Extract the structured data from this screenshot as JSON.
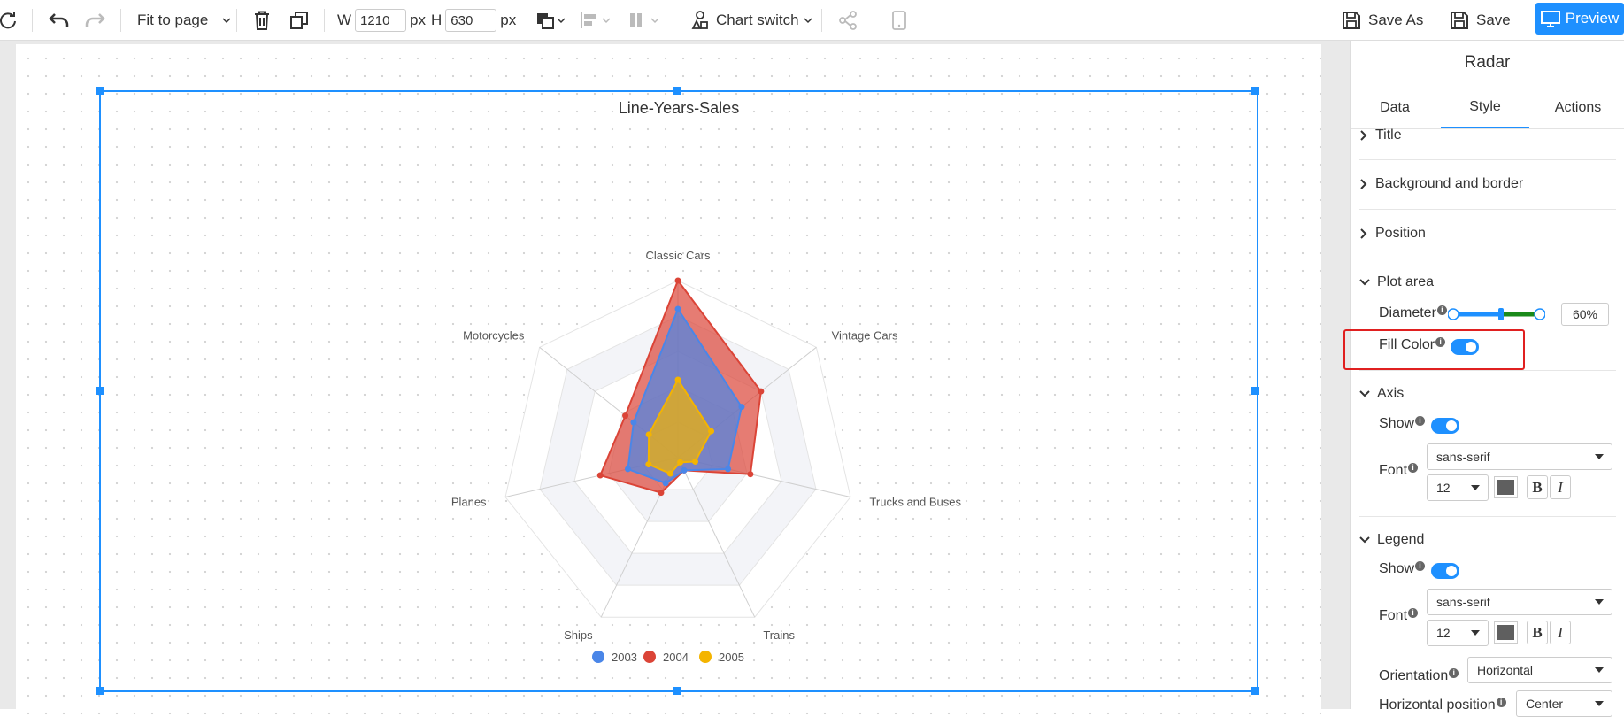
{
  "toolbar": {
    "fit_label": "Fit to page",
    "width_label": "W",
    "width_value": "1210",
    "width_unit": "px",
    "height_label": "H",
    "height_value": "630",
    "height_unit": "px",
    "chart_switch_label": "Chart switch",
    "save_as_label": "Save As",
    "save_label": "Save",
    "preview_label": "Preview"
  },
  "panel": {
    "title": "Radar",
    "tabs": [
      "Data",
      "Style",
      "Actions"
    ],
    "active_tab": "Style",
    "sections": {
      "title": "Title",
      "background": "Background and border",
      "position": "Position",
      "plot_area": "Plot area",
      "axis": "Axis",
      "legend": "Legend"
    },
    "plot_area": {
      "diameter_label": "Diameter",
      "diameter_value": "60%",
      "diameter_fraction": 0.6,
      "fill_color_label": "Fill Color",
      "fill_color_on": true
    },
    "axis": {
      "show_label": "Show",
      "show_on": true,
      "font_label": "Font",
      "font_family": "sans-serif",
      "font_size": "12",
      "bold": "B",
      "italic": "I"
    },
    "legend": {
      "show_label": "Show",
      "show_on": true,
      "font_label": "Font",
      "font_family": "sans-serif",
      "font_size": "12",
      "bold": "B",
      "italic": "I",
      "orientation_label": "Orientation",
      "orientation_value": "Horizontal",
      "hpos_label": "Horizontal position",
      "hpos_value": "Center"
    }
  },
  "chart_data": {
    "type": "radar",
    "title": "Line-Years-Sales",
    "categories": [
      "Classic Cars",
      "Vintage Cars",
      "Trucks and Buses",
      "Trains",
      "Ships",
      "Planes",
      "Motorcycles"
    ],
    "series": [
      {
        "name": "2003",
        "color": "#4a86e8",
        "values": [
          0.84,
          0.46,
          0.29,
          0.08,
          0.16,
          0.29,
          0.32
        ]
      },
      {
        "name": "2004",
        "color": "#db4437",
        "values": [
          1.0,
          0.6,
          0.42,
          0.08,
          0.22,
          0.45,
          0.38
        ]
      },
      {
        "name": "2005",
        "color": "#f4b400",
        "values": [
          0.44,
          0.24,
          0.1,
          0.03,
          0.1,
          0.17,
          0.21
        ]
      }
    ],
    "ylim": [
      0,
      1
    ],
    "legend_position": "bottom-center"
  }
}
